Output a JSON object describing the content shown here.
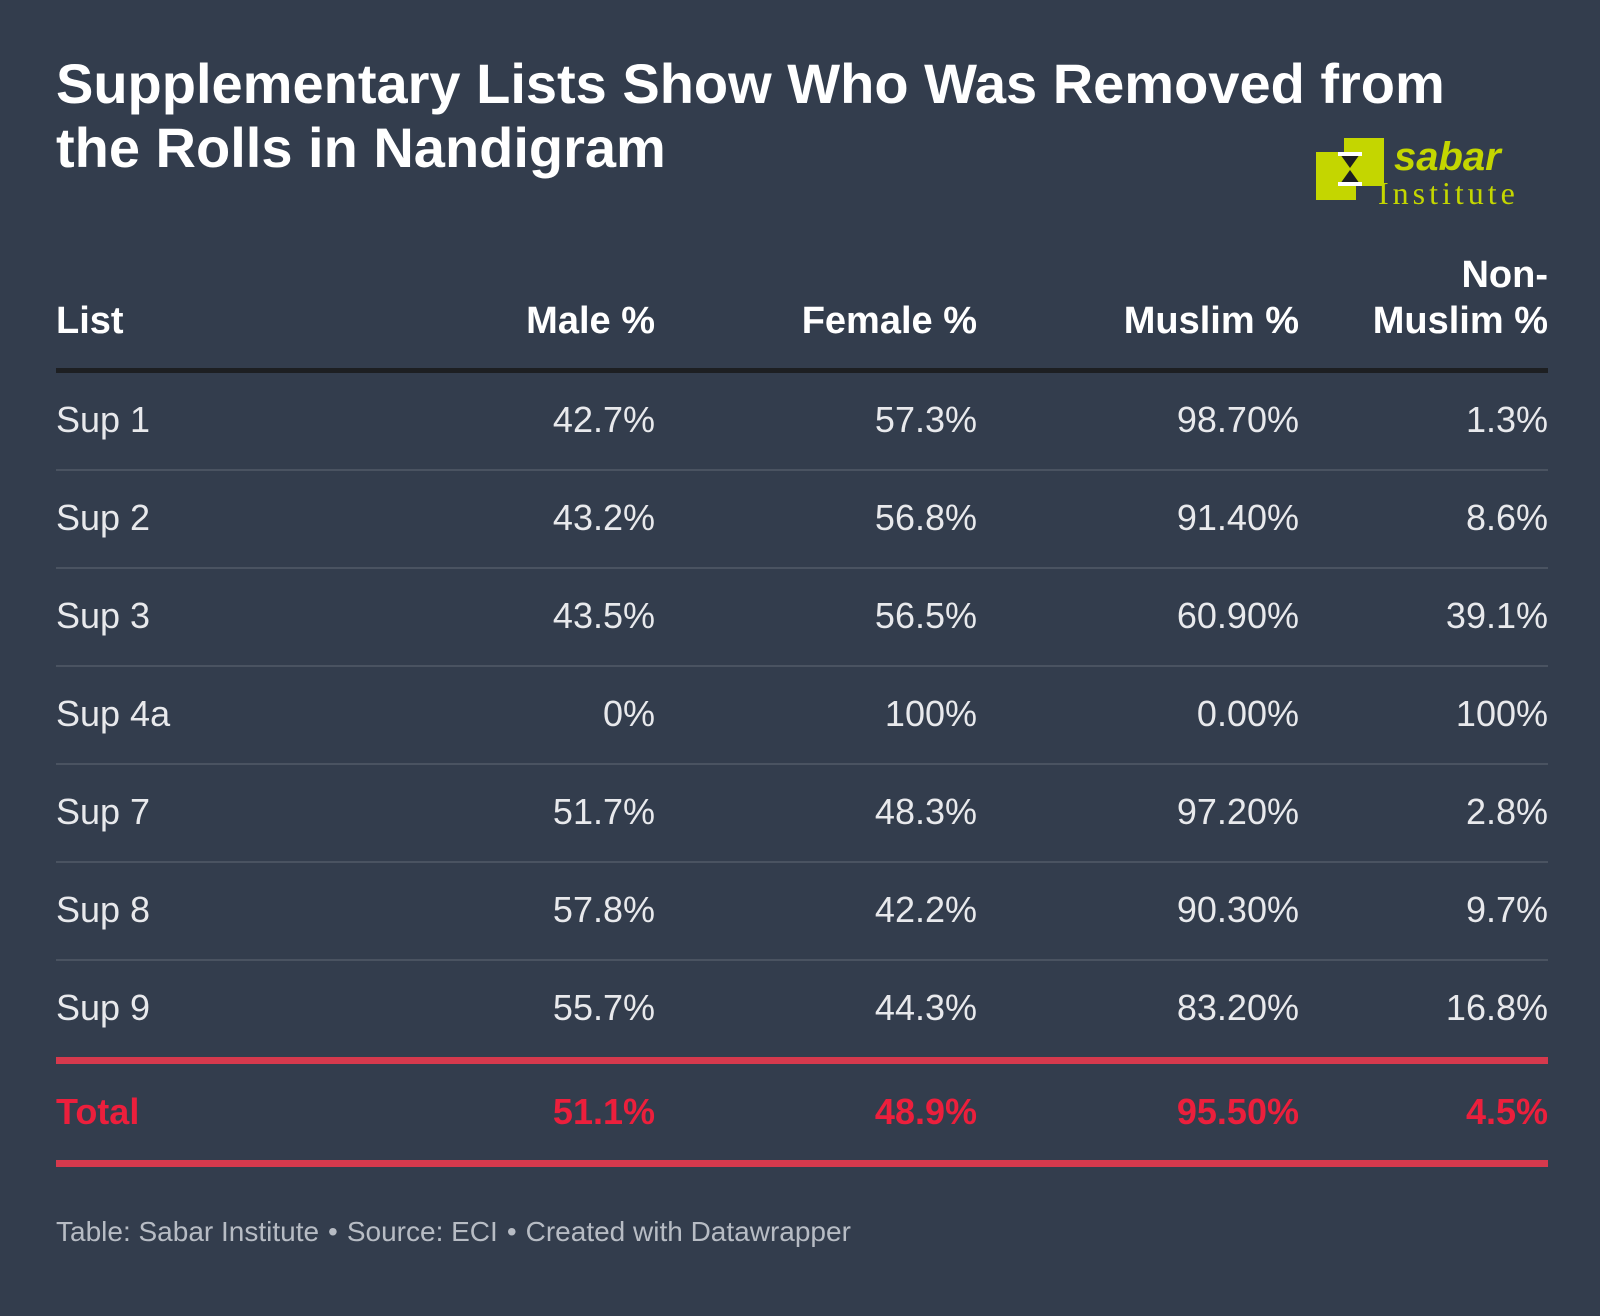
{
  "colors": {
    "background": "#333d4d",
    "text": "#ffffff",
    "total": "#ec1f3c",
    "total_rule": "#d6394d",
    "logo": "#c4d600"
  },
  "logo": {
    "line1": "sabar",
    "line2": "Institute"
  },
  "footer": {
    "table": "Table: Sabar Institute",
    "source": "Source: ECI",
    "created": "Created with Datawrapper"
  },
  "chart_data": {
    "type": "table",
    "title": "Supplementary Lists Show Who Was Removed from the Rolls in Nandigram",
    "columns": [
      "List",
      "Male %",
      "Female %",
      "Muslim %",
      "Non-Muslim %"
    ],
    "column_lines": [
      [
        "List"
      ],
      [
        "Male %"
      ],
      [
        "Female %"
      ],
      [
        "Muslim %"
      ],
      [
        "Non-",
        "Muslim %"
      ]
    ],
    "rows": [
      [
        "Sup 1",
        "42.7%",
        "57.3%",
        "98.70%",
        "1.3%"
      ],
      [
        "Sup 2",
        "43.2%",
        "56.8%",
        "91.40%",
        "8.6%"
      ],
      [
        "Sup 3",
        "43.5%",
        "56.5%",
        "60.90%",
        "39.1%"
      ],
      [
        "Sup 4a",
        "0%",
        "100%",
        "0.00%",
        "100%"
      ],
      [
        "Sup 7",
        "51.7%",
        "48.3%",
        "97.20%",
        "2.8%"
      ],
      [
        "Sup 8",
        "57.8%",
        "42.2%",
        "90.30%",
        "9.7%"
      ],
      [
        "Sup 9",
        "55.7%",
        "44.3%",
        "83.20%",
        "16.8%"
      ]
    ],
    "total": [
      "Total",
      "51.1%",
      "48.9%",
      "95.50%",
      "4.5%"
    ]
  }
}
